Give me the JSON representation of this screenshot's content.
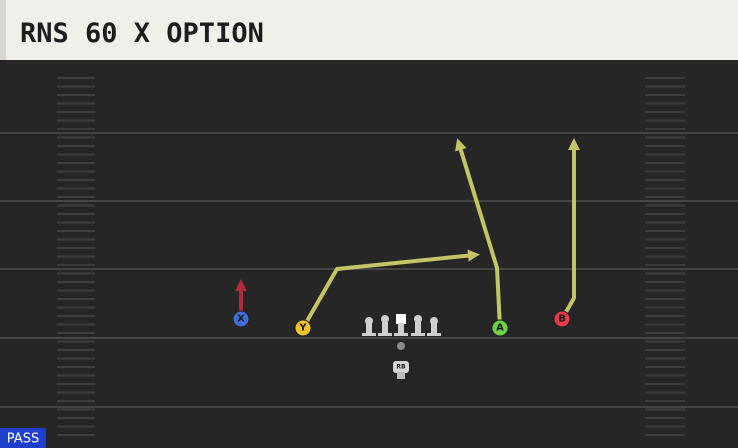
{
  "header": {
    "title": "RNS 60 X OPTION"
  },
  "players": [
    {
      "label": "X"
    },
    {
      "label": "Y"
    },
    {
      "label": "A"
    },
    {
      "label": "B"
    },
    {
      "label": "RB"
    }
  ],
  "badge": {
    "label": "PASS"
  }
}
